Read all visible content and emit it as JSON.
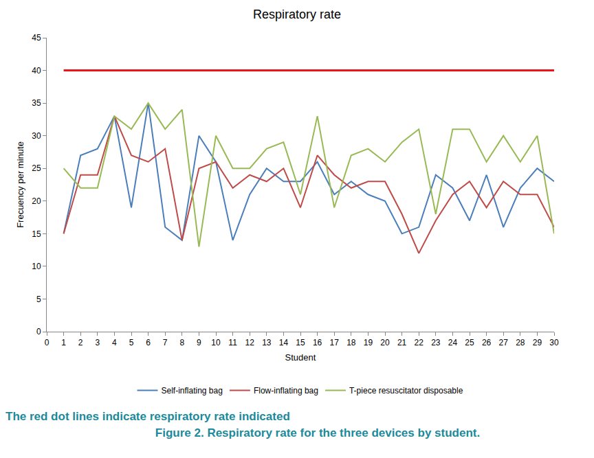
{
  "chart_data": {
    "type": "line",
    "title": "Respiratory rate",
    "x_label": "Student",
    "y_label": "Frecuency per minute",
    "x": [
      1,
      2,
      3,
      4,
      5,
      6,
      7,
      8,
      9,
      10,
      11,
      12,
      13,
      14,
      15,
      16,
      17,
      18,
      19,
      20,
      21,
      22,
      23,
      24,
      25,
      26,
      27,
      28,
      29,
      30
    ],
    "series": [
      {
        "name": "Self-inflating bag",
        "color": "#4a7ebb",
        "values": [
          15,
          27,
          28,
          33,
          19,
          35,
          16,
          14,
          30,
          26,
          14,
          21,
          25,
          23,
          23,
          26,
          21,
          23,
          21,
          20,
          15,
          16,
          24,
          22,
          17,
          24,
          16,
          22,
          25,
          23
        ]
      },
      {
        "name": "Flow-inflating bag",
        "color": "#be4b48",
        "values": [
          15,
          24,
          24,
          33,
          27,
          26,
          28,
          14,
          25,
          26,
          22,
          24,
          23,
          25,
          19,
          27,
          24,
          22,
          23,
          23,
          18,
          12,
          17,
          21,
          23,
          19,
          23,
          21,
          21,
          16
        ]
      },
      {
        "name": "T-piece resuscitator disposable",
        "color": "#98b954",
        "values": [
          25,
          22,
          22,
          33,
          31,
          35,
          31,
          34,
          13,
          30,
          25,
          25,
          28,
          29,
          21,
          33,
          19,
          27,
          28,
          26,
          29,
          31,
          18,
          31,
          31,
          26,
          30,
          26,
          30,
          15
        ]
      }
    ],
    "reference_line": {
      "y": 40,
      "x": [
        1,
        30
      ],
      "color": "#e8151b"
    },
    "xlim": [
      0,
      30
    ],
    "xticks": [
      0,
      1,
      2,
      3,
      4,
      5,
      6,
      7,
      8,
      9,
      10,
      11,
      12,
      13,
      14,
      15,
      16,
      17,
      18,
      19,
      20,
      21,
      22,
      23,
      24,
      25,
      26,
      27,
      28,
      29,
      30
    ],
    "ylim": [
      0,
      45
    ],
    "yticks": [
      0,
      5,
      10,
      15,
      20,
      25,
      30,
      35,
      40,
      45
    ],
    "grid": false,
    "legend": "bottom",
    "caption": [
      "The red dot lines indicate respiratory rate indicated",
      "Figure 2. Respiratory rate for the three devices by student."
    ]
  }
}
